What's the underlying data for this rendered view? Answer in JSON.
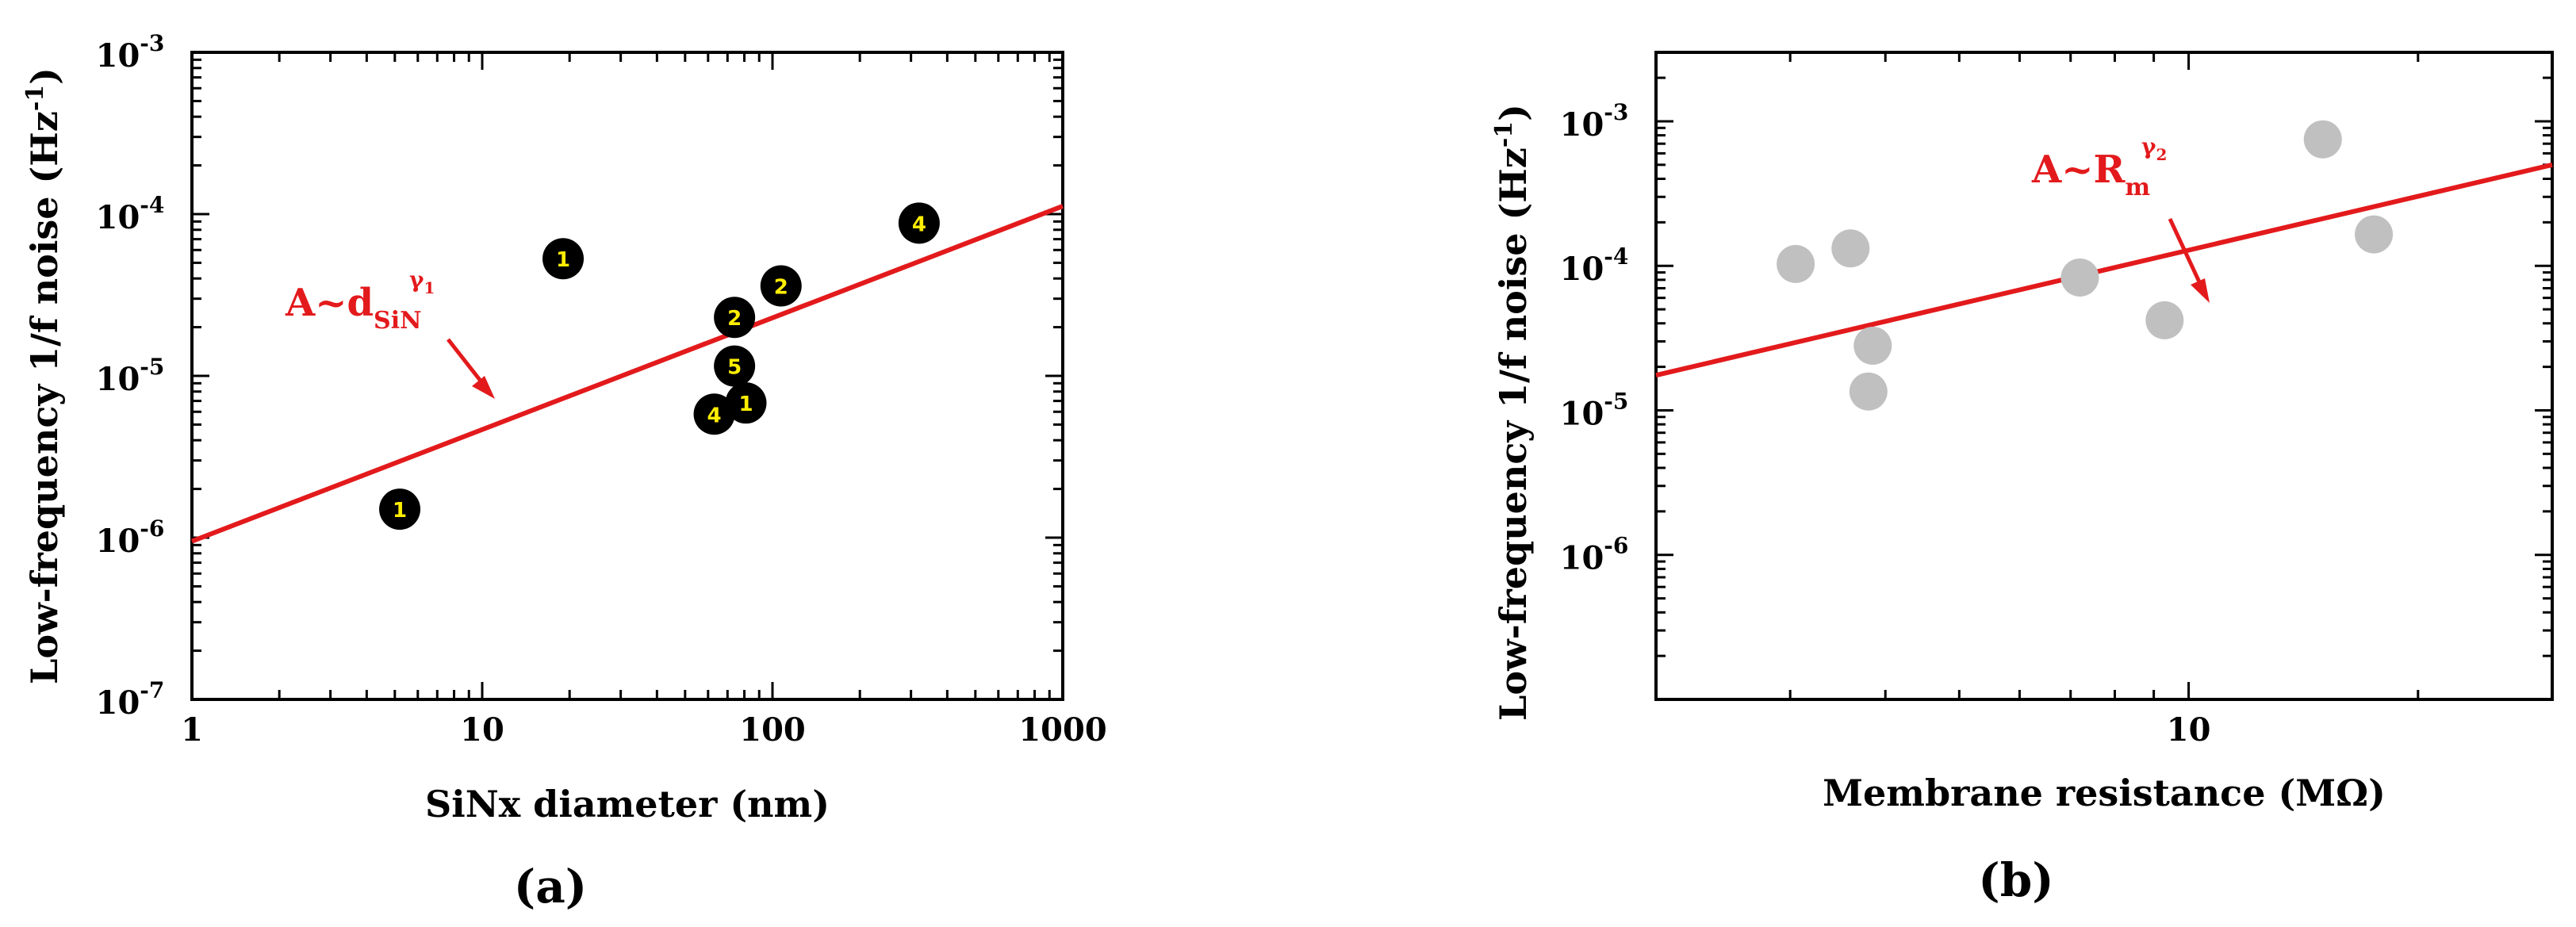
{
  "chart_data": [
    {
      "panel": "(a)",
      "type": "scatter",
      "xlabel": "SiNx diameter (nm)",
      "ylabel": "Low-frequency 1/f noise (Hz",
      "ylabel_sup": "-1",
      "ylabel_close": ")",
      "x_scale": "log",
      "y_scale": "log",
      "xlim": [
        1,
        1000
      ],
      "ylim": [
        1e-07,
        0.001
      ],
      "x_ticks": [
        {
          "value": 1,
          "label": "1"
        },
        {
          "value": 10,
          "label": "10"
        },
        {
          "value": 100,
          "label": "100"
        },
        {
          "value": 1000,
          "label": "1000"
        }
      ],
      "y_ticks": [
        {
          "value": 1e-07,
          "base": "10",
          "exp": "-7"
        },
        {
          "value": 1e-06,
          "base": "10",
          "exp": "-6"
        },
        {
          "value": 1e-05,
          "base": "10",
          "exp": "-5"
        },
        {
          "value": 0.0001,
          "base": "10",
          "exp": "-4"
        },
        {
          "value": 0.001,
          "base": "10",
          "exp": "-3"
        }
      ],
      "marker_color": "#000000",
      "label_color": "#ffee00",
      "points": [
        {
          "x": 5.2,
          "y": 1.5e-06,
          "label": "1"
        },
        {
          "x": 19,
          "y": 5.3e-05,
          "label": "1"
        },
        {
          "x": 63,
          "y": 5.8e-06,
          "label": "4"
        },
        {
          "x": 74,
          "y": 2.3e-05,
          "label": "2"
        },
        {
          "x": 74,
          "y": 1.15e-05,
          "label": "5"
        },
        {
          "x": 81,
          "y": 6.8e-06,
          "label": "1"
        },
        {
          "x": 107,
          "y": 3.6e-05,
          "label": "2"
        },
        {
          "x": 320,
          "y": 8.8e-05,
          "label": "4"
        }
      ],
      "fit_line": {
        "color": "#e31a1c",
        "x": [
          1,
          1000
        ],
        "y": [
          9.5e-07,
          0.000112
        ]
      },
      "annotation": {
        "main": "A~d",
        "sub": "SiN",
        "sup": "γ",
        "sup_sub": "1"
      }
    },
    {
      "panel": "(b)",
      "type": "scatter",
      "xlabel": "Membrane resistance (MΩ)",
      "ylabel": "Low-frequency 1/f noise (Hz",
      "ylabel_sup": "-1",
      "ylabel_close": ")",
      "x_scale": "log",
      "y_scale": "log",
      "xlim": [
        2,
        30
      ],
      "ylim": [
        1e-07,
        0.003
      ],
      "x_ticks": [
        {
          "value": 10,
          "label": "10"
        }
      ],
      "y_ticks": [
        {
          "value": 1e-06,
          "base": "10",
          "exp": "-6"
        },
        {
          "value": 1e-05,
          "base": "10",
          "exp": "-5"
        },
        {
          "value": 0.0001,
          "base": "10",
          "exp": "-4"
        },
        {
          "value": 0.001,
          "base": "10",
          "exp": "-3"
        }
      ],
      "marker_color": "#c0c0c0",
      "points": [
        {
          "x": 3.05,
          "y": 0.000103
        },
        {
          "x": 3.6,
          "y": 0.000132
        },
        {
          "x": 3.85,
          "y": 2.8e-05
        },
        {
          "x": 3.8,
          "y": 1.35e-05
        },
        {
          "x": 7.2,
          "y": 8.3e-05
        },
        {
          "x": 9.3,
          "y": 4.2e-05
        },
        {
          "x": 15,
          "y": 0.00075
        },
        {
          "x": 17.5,
          "y": 0.000165
        }
      ],
      "fit_line": {
        "color": "#e31a1c",
        "x": [
          2,
          30
        ],
        "y": [
          1.75e-05,
          0.0005
        ]
      },
      "annotation": {
        "main": "A~R",
        "sub": "m",
        "sup": "γ",
        "sup_sub": "2"
      }
    }
  ]
}
